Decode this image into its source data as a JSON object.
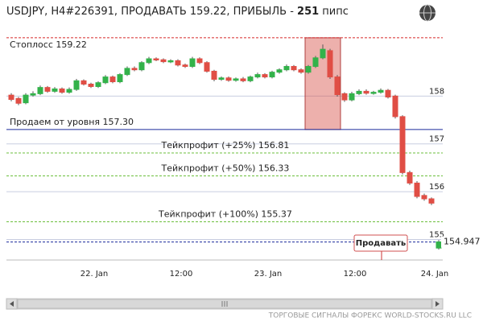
{
  "chart_data": {
    "type": "candlestick",
    "title": "USDJPY, H4#226391, ПРОДАВАТЬ 159.22, ПРИБЫЛЬ - ",
    "title_bold": "251",
    "title_end": " пипс",
    "categories": [
      null,
      null,
      null,
      null,
      null,
      null,
      null,
      null,
      null,
      null,
      null,
      "22. Jan",
      null,
      null,
      null,
      null,
      null,
      null,
      null,
      null,
      null,
      null,
      null,
      "12:00",
      null,
      null,
      null,
      null,
      null,
      null,
      null,
      null,
      null,
      null,
      null,
      "23. Jan",
      null,
      null,
      null,
      null,
      null,
      null,
      null,
      null,
      null,
      null,
      null,
      "12:00",
      null,
      null,
      null,
      null,
      null,
      null,
      null,
      null,
      null,
      null,
      "24. Jan",
      null
    ],
    "open": [
      158.02,
      157.95,
      157.86,
      158.02,
      158.05,
      158.18,
      158.1,
      158.15,
      158.08,
      158.14,
      158.32,
      158.25,
      158.2,
      158.28,
      158.4,
      158.3,
      158.45,
      158.58,
      158.55,
      158.7,
      158.78,
      158.76,
      158.72,
      158.74,
      158.65,
      158.62,
      158.78,
      158.7,
      158.52,
      158.35,
      158.38,
      158.33,
      158.36,
      158.32,
      158.4,
      158.45,
      158.4,
      158.5,
      158.55,
      158.62,
      158.55,
      158.5,
      158.62,
      158.8,
      158.95,
      158.4,
      158.05,
      157.92,
      158.05,
      158.1,
      158.06,
      158.08,
      158.12,
      158.0,
      157.57,
      156.4,
      156.18,
      155.92,
      155.85,
      154.82
    ],
    "close": [
      157.93,
      157.85,
      158.02,
      158.05,
      158.18,
      158.1,
      158.15,
      158.08,
      158.14,
      158.32,
      158.25,
      158.2,
      158.28,
      158.4,
      158.3,
      158.45,
      158.58,
      158.55,
      158.7,
      158.78,
      158.76,
      158.72,
      158.74,
      158.65,
      158.62,
      158.78,
      158.7,
      158.52,
      158.35,
      158.38,
      158.33,
      158.36,
      158.32,
      158.4,
      158.45,
      158.4,
      158.5,
      158.55,
      158.62,
      158.55,
      158.5,
      158.62,
      158.8,
      158.98,
      158.4,
      158.03,
      157.92,
      158.05,
      158.1,
      158.06,
      158.08,
      158.12,
      157.98,
      157.57,
      156.4,
      156.18,
      155.9,
      155.85,
      155.76,
      154.95
    ],
    "high": [
      158.06,
      157.98,
      158.06,
      158.1,
      158.22,
      158.21,
      158.19,
      158.18,
      158.18,
      158.36,
      158.35,
      158.28,
      158.31,
      158.44,
      158.43,
      158.48,
      158.62,
      158.62,
      158.73,
      158.82,
      158.81,
      158.79,
      158.77,
      158.77,
      158.68,
      158.82,
      158.81,
      158.73,
      158.55,
      158.41,
      158.41,
      158.39,
      158.4,
      158.43,
      158.49,
      158.48,
      158.53,
      158.58,
      158.66,
      158.65,
      158.58,
      158.65,
      158.84,
      159.08,
      158.99,
      158.44,
      158.08,
      158.09,
      158.14,
      158.14,
      158.11,
      158.16,
      158.15,
      158.03,
      157.6,
      156.44,
      156.22,
      155.96,
      155.88,
      154.99
    ],
    "low": [
      157.89,
      157.81,
      157.83,
      157.99,
      158.02,
      158.07,
      158.07,
      158.05,
      158.05,
      158.11,
      158.22,
      158.17,
      158.17,
      158.25,
      158.27,
      158.27,
      158.42,
      158.52,
      158.52,
      158.67,
      158.73,
      158.69,
      158.69,
      158.62,
      158.59,
      158.59,
      158.67,
      158.49,
      158.31,
      158.32,
      158.3,
      158.3,
      158.29,
      158.29,
      158.37,
      158.37,
      158.37,
      158.47,
      158.52,
      158.52,
      158.47,
      158.47,
      158.59,
      158.77,
      158.36,
      157.99,
      157.88,
      157.89,
      158.02,
      158.03,
      158.03,
      158.05,
      157.95,
      157.53,
      156.36,
      156.14,
      155.86,
      155.81,
      155.72,
      154.79
    ],
    "up_color": "#33b24a",
    "down_color": "#e04e45",
    "ylim": [
      154.57,
      159.37
    ],
    "yticks": [
      155,
      156,
      157,
      158
    ],
    "grid": true,
    "levels": [
      {
        "label": "Стоплосс 159.22",
        "value": 159.22,
        "color": "#d62728",
        "dash": true
      },
      {
        "label": "Продаем от уровня 157.30",
        "value": 157.3,
        "color": "#1a2a9c",
        "dash": false
      },
      {
        "label": "Тейкпрофит (+25%) 156.81",
        "value": 156.81,
        "color": "#6cbf3c",
        "dash": true
      },
      {
        "label": "Тейкпрофит (+50%) 156.33",
        "value": 156.33,
        "color": "#6cbf3c",
        "dash": true
      },
      {
        "label": "Тейкпрофит (+100%) 155.37",
        "value": 155.37,
        "color": "#6cbf3c",
        "dash": true
      }
    ],
    "current_price": 154.947,
    "current_color": "#1a2a9c",
    "signal_label": "Продавать",
    "footer": "ТОРГОВЫЕ СИГНАЛЫ ФОРЕКС WORLD-STOCKS.RU LLC"
  }
}
